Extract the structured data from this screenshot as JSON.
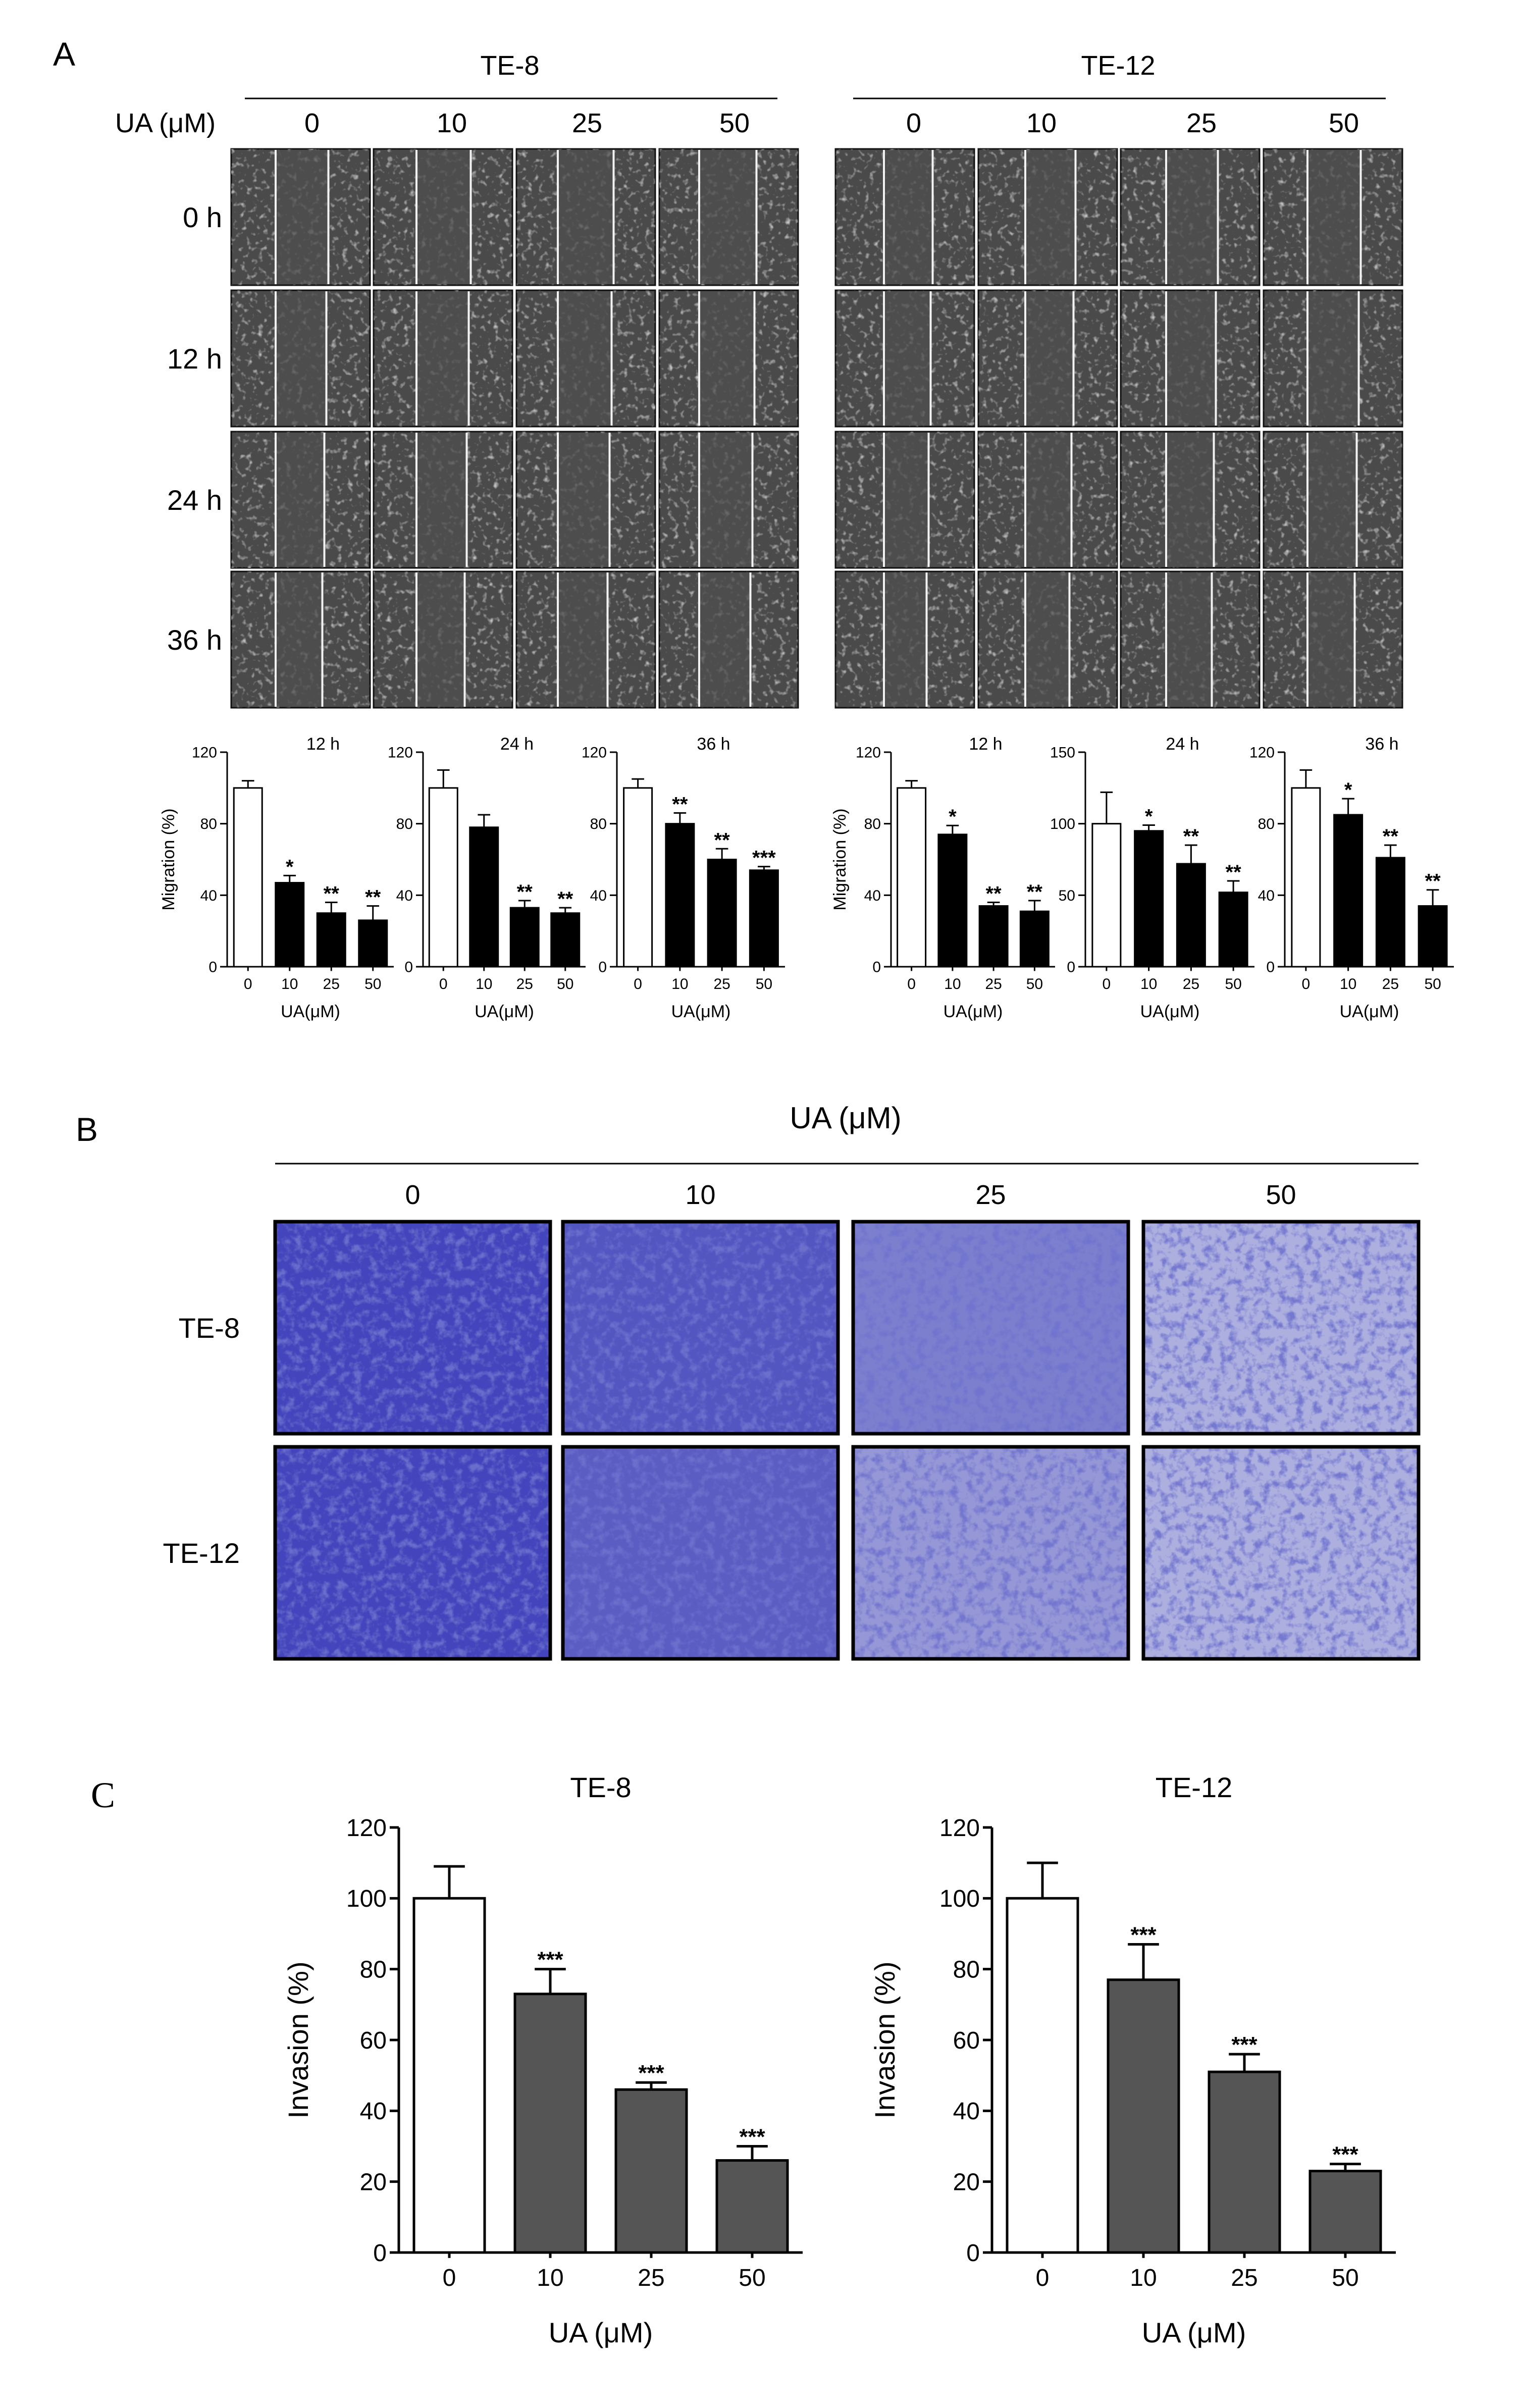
{
  "panels": {
    "A": {
      "label": "A",
      "concentration_label": "UA (μM)",
      "concentrations": [
        "0",
        "10",
        "25",
        "50"
      ],
      "times": [
        "0 h",
        "12 h",
        "24 h",
        "36 h"
      ],
      "cell_lines": [
        "TE-8",
        "TE-12"
      ]
    },
    "B": {
      "label": "B",
      "header": "UA (μM)",
      "concentrations": [
        "0",
        "10",
        "25",
        "50"
      ],
      "rows": [
        "TE-8",
        "TE-12"
      ]
    },
    "C": {
      "label": "C"
    }
  },
  "colors": {
    "bar_open": "#ffffff",
    "bar_filled_A": "#000000",
    "bar_filled_C": "#555555",
    "micrograph_gray": "#4a4a4a",
    "stain_blue": "#3b3cb8",
    "background_pale": "#dfe2ef"
  },
  "chart_data": [
    {
      "type": "bar",
      "panel": "A",
      "cell_line": "TE-8",
      "title": "12 h",
      "categories": [
        "0",
        "10",
        "25",
        "50"
      ],
      "values": [
        100,
        47,
        30,
        26
      ],
      "errors": [
        4,
        4,
        6,
        8
      ],
      "significance": [
        "",
        "*",
        "**",
        "**"
      ],
      "ylim": [
        0,
        120
      ],
      "yticks": [
        0,
        40,
        80,
        120
      ],
      "ylabel": "Migration (%)",
      "xlabel": "UA(μM)"
    },
    {
      "type": "bar",
      "panel": "A",
      "cell_line": "TE-8",
      "title": "24 h",
      "categories": [
        "0",
        "10",
        "25",
        "50"
      ],
      "values": [
        100,
        78,
        33,
        30
      ],
      "errors": [
        10,
        7,
        4,
        3
      ],
      "significance": [
        "",
        "",
        "**",
        "**"
      ],
      "ylim": [
        0,
        120
      ],
      "yticks": [
        0,
        40,
        80,
        120
      ],
      "ylabel": "",
      "xlabel": "UA(μM)"
    },
    {
      "type": "bar",
      "panel": "A",
      "cell_line": "TE-8",
      "title": "36 h",
      "categories": [
        "0",
        "10",
        "25",
        "50"
      ],
      "values": [
        100,
        80,
        60,
        54
      ],
      "errors": [
        5,
        6,
        6,
        2
      ],
      "significance": [
        "",
        "**",
        "**",
        "***"
      ],
      "ylim": [
        0,
        120
      ],
      "yticks": [
        0,
        40,
        80,
        120
      ],
      "ylabel": "",
      "xlabel": "UA(μM)"
    },
    {
      "type": "bar",
      "panel": "A",
      "cell_line": "TE-12",
      "title": "12 h",
      "categories": [
        "0",
        "10",
        "25",
        "50"
      ],
      "values": [
        100,
        74,
        34,
        31
      ],
      "errors": [
        4,
        5,
        2,
        6
      ],
      "significance": [
        "",
        "*",
        "**",
        "**"
      ],
      "ylim": [
        0,
        120
      ],
      "yticks": [
        0,
        40,
        80,
        120
      ],
      "ylabel": "Migration (%)",
      "xlabel": "UA(μM)"
    },
    {
      "type": "bar",
      "panel": "A",
      "cell_line": "TE-12",
      "title": "24 h",
      "categories": [
        "0",
        "10",
        "25",
        "50"
      ],
      "values": [
        100,
        95,
        72,
        52
      ],
      "errors": [
        22,
        4,
        13,
        8
      ],
      "significance": [
        "",
        "*",
        "**",
        "**"
      ],
      "ylim": [
        0,
        150
      ],
      "yticks": [
        0,
        50,
        100,
        150
      ],
      "ylabel": "",
      "xlabel": "UA(μM)"
    },
    {
      "type": "bar",
      "panel": "A",
      "cell_line": "TE-12",
      "title": "36 h",
      "categories": [
        "0",
        "10",
        "25",
        "50"
      ],
      "values": [
        100,
        85,
        61,
        34
      ],
      "errors": [
        10,
        9,
        7,
        9
      ],
      "significance": [
        "",
        "*",
        "**",
        "**"
      ],
      "ylim": [
        0,
        120
      ],
      "yticks": [
        0,
        40,
        80,
        120
      ],
      "ylabel": "",
      "xlabel": "UA(μM)"
    },
    {
      "type": "bar",
      "panel": "C",
      "cell_line": "TE-8",
      "title": "TE-8",
      "categories": [
        "0",
        "10",
        "25",
        "50"
      ],
      "values": [
        100,
        73,
        46,
        26
      ],
      "errors": [
        9,
        7,
        2,
        4
      ],
      "significance": [
        "",
        "***",
        "***",
        "***"
      ],
      "ylim": [
        0,
        120
      ],
      "yticks": [
        0,
        20,
        40,
        60,
        80,
        100,
        120
      ],
      "ylabel": "Invasion (%)",
      "xlabel": "UA (μM)"
    },
    {
      "type": "bar",
      "panel": "C",
      "cell_line": "TE-12",
      "title": "TE-12",
      "categories": [
        "0",
        "10",
        "25",
        "50"
      ],
      "values": [
        100,
        77,
        51,
        23
      ],
      "errors": [
        10,
        10,
        5,
        2
      ],
      "significance": [
        "",
        "***",
        "***",
        "***"
      ],
      "ylim": [
        0,
        120
      ],
      "yticks": [
        0,
        20,
        40,
        60,
        80,
        100,
        120
      ],
      "ylabel": "Invasion (%)",
      "xlabel": "UA (μM)"
    }
  ]
}
